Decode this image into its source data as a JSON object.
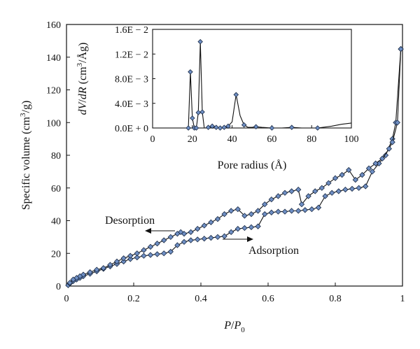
{
  "chart_data": [
    {
      "id": "isotherm",
      "type": "line",
      "xlabel": "P/P0",
      "ylabel": "Specific volume (cm3/g)",
      "xlim": [
        0,
        1
      ],
      "ylim": [
        0,
        160
      ],
      "x_ticks": [
        0,
        0.2,
        0.4,
        0.6,
        0.8,
        1
      ],
      "x_tick_labels": [
        "0",
        "0.2",
        "0.4",
        "0.6",
        "0.8",
        "1"
      ],
      "y_ticks": [
        0,
        20,
        40,
        60,
        80,
        100,
        120,
        140,
        160
      ],
      "y_tick_labels": [
        "0",
        "20",
        "40",
        "60",
        "80",
        "100",
        "120",
        "140",
        "160"
      ],
      "grid": false,
      "marker_color": "#6f8fc4",
      "line_color": "#111111",
      "series": [
        {
          "name": "Adsorption",
          "points": [
            [
              0.005,
              0.5
            ],
            [
              0.01,
              1.5
            ],
            [
              0.02,
              3
            ],
            [
              0.03,
              4
            ],
            [
              0.04,
              5
            ],
            [
              0.05,
              6
            ],
            [
              0.07,
              7.5
            ],
            [
              0.09,
              9
            ],
            [
              0.11,
              10.5
            ],
            [
              0.13,
              12
            ],
            [
              0.15,
              13.5
            ],
            [
              0.17,
              15
            ],
            [
              0.19,
              16.5
            ],
            [
              0.21,
              17.5
            ],
            [
              0.23,
              18.5
            ],
            [
              0.25,
              19
            ],
            [
              0.27,
              19.5
            ],
            [
              0.29,
              20
            ],
            [
              0.31,
              21
            ],
            [
              0.33,
              25
            ],
            [
              0.35,
              27
            ],
            [
              0.37,
              28
            ],
            [
              0.39,
              28.5
            ],
            [
              0.41,
              29
            ],
            [
              0.43,
              29.5
            ],
            [
              0.45,
              30
            ],
            [
              0.47,
              30.5
            ],
            [
              0.49,
              33
            ],
            [
              0.51,
              35
            ],
            [
              0.53,
              35.5
            ],
            [
              0.55,
              36
            ],
            [
              0.57,
              36.5
            ],
            [
              0.59,
              44
            ],
            [
              0.61,
              45
            ],
            [
              0.63,
              45.5
            ],
            [
              0.65,
              45.5
            ],
            [
              0.67,
              46
            ],
            [
              0.69,
              46
            ],
            [
              0.71,
              46.5
            ],
            [
              0.73,
              47
            ],
            [
              0.75,
              48
            ],
            [
              0.77,
              55
            ],
            [
              0.79,
              57
            ],
            [
              0.81,
              58
            ],
            [
              0.83,
              59
            ],
            [
              0.85,
              59.5
            ],
            [
              0.87,
              60
            ],
            [
              0.89,
              61
            ],
            [
              0.91,
              70
            ],
            [
              0.93,
              75
            ],
            [
              0.95,
              80
            ],
            [
              0.97,
              90
            ],
            [
              0.98,
              100
            ],
            [
              0.995,
              145
            ]
          ]
        },
        {
          "name": "Desorption",
          "points": [
            [
              0.995,
              145
            ],
            [
              0.985,
              100
            ],
            [
              0.97,
              88
            ],
            [
              0.96,
              84
            ],
            [
              0.94,
              78
            ],
            [
              0.92,
              75
            ],
            [
              0.9,
              72
            ],
            [
              0.88,
              68
            ],
            [
              0.86,
              65
            ],
            [
              0.84,
              71
            ],
            [
              0.82,
              68
            ],
            [
              0.8,
              66
            ],
            [
              0.78,
              63
            ],
            [
              0.76,
              60
            ],
            [
              0.74,
              58
            ],
            [
              0.72,
              55
            ],
            [
              0.7,
              50
            ],
            [
              0.69,
              59
            ],
            [
              0.67,
              58
            ],
            [
              0.65,
              57
            ],
            [
              0.63,
              55
            ],
            [
              0.61,
              53
            ],
            [
              0.59,
              50
            ],
            [
              0.57,
              46
            ],
            [
              0.55,
              44
            ],
            [
              0.53,
              43
            ],
            [
              0.51,
              47
            ],
            [
              0.49,
              46
            ],
            [
              0.47,
              44
            ],
            [
              0.45,
              41
            ],
            [
              0.43,
              39
            ],
            [
              0.41,
              37
            ],
            [
              0.39,
              35
            ],
            [
              0.37,
              33
            ],
            [
              0.35,
              32
            ],
            [
              0.34,
              33
            ],
            [
              0.33,
              32
            ],
            [
              0.31,
              30
            ],
            [
              0.29,
              28
            ],
            [
              0.27,
              26
            ],
            [
              0.25,
              24
            ],
            [
              0.23,
              22
            ],
            [
              0.21,
              20
            ],
            [
              0.19,
              18.5
            ],
            [
              0.17,
              17
            ],
            [
              0.15,
              15
            ],
            [
              0.13,
              13
            ],
            [
              0.11,
              11
            ],
            [
              0.09,
              10
            ],
            [
              0.07,
              8.5
            ],
            [
              0.05,
              7
            ],
            [
              0.04,
              6
            ],
            [
              0.03,
              5
            ],
            [
              0.02,
              4
            ],
            [
              0.01,
              2
            ]
          ]
        }
      ],
      "annotations": [
        "Desorption",
        "Adsorption"
      ]
    },
    {
      "id": "inset",
      "type": "line",
      "xlabel": "Pore radius (Å)",
      "ylabel": "dV/dR (cm3/Åg)",
      "xlim": [
        0,
        100
      ],
      "ylim": [
        0,
        0.016
      ],
      "x_ticks": [
        0,
        20,
        40,
        60,
        80,
        100
      ],
      "x_tick_labels": [
        "0",
        "20",
        "40",
        "60",
        "80",
        "100"
      ],
      "y_ticks": [
        0,
        0.004,
        0.008,
        0.012,
        0.016
      ],
      "y_tick_labels": [
        "0.0E + 0",
        "4.0E − 3",
        "8.0E − 3",
        "1.2E − 2",
        "1.6E − 2"
      ],
      "grid": false,
      "series": [
        {
          "name": "",
          "points": [
            [
              17,
              0
            ],
            [
              18,
              0
            ],
            [
              19,
              0.0091
            ],
            [
              20,
              0.0016
            ],
            [
              21,
              0
            ],
            [
              22,
              0
            ],
            [
              23,
              0.0025
            ],
            [
              24,
              0.014
            ],
            [
              25,
              0.0026
            ],
            [
              26,
              0
            ],
            [
              27,
              0
            ],
            [
              28,
              0.0001
            ],
            [
              30,
              0.0003
            ],
            [
              32,
              0.0001
            ],
            [
              34,
              0
            ],
            [
              36,
              0.0001
            ],
            [
              38,
              0.0003
            ],
            [
              40,
              0.001
            ],
            [
              42,
              0.0054
            ],
            [
              44,
              0.002
            ],
            [
              46,
              0.0005
            ],
            [
              48,
              0.0001
            ],
            [
              50,
              0.0001
            ],
            [
              52,
              0.0002
            ],
            [
              55,
              0.0001
            ],
            [
              60,
              0
            ],
            [
              65,
              0
            ],
            [
              70,
              0.0001
            ],
            [
              75,
              0
            ],
            [
              83,
              0
            ],
            [
              90,
              0.0003
            ],
            [
              95,
              0.0006
            ],
            [
              100,
              0.0008
            ]
          ]
        }
      ],
      "markers_x": [
        18,
        19,
        20,
        21,
        22,
        23,
        24,
        25,
        28,
        30,
        32,
        34,
        36,
        38,
        42,
        46,
        52,
        60,
        70,
        83
      ]
    }
  ]
}
